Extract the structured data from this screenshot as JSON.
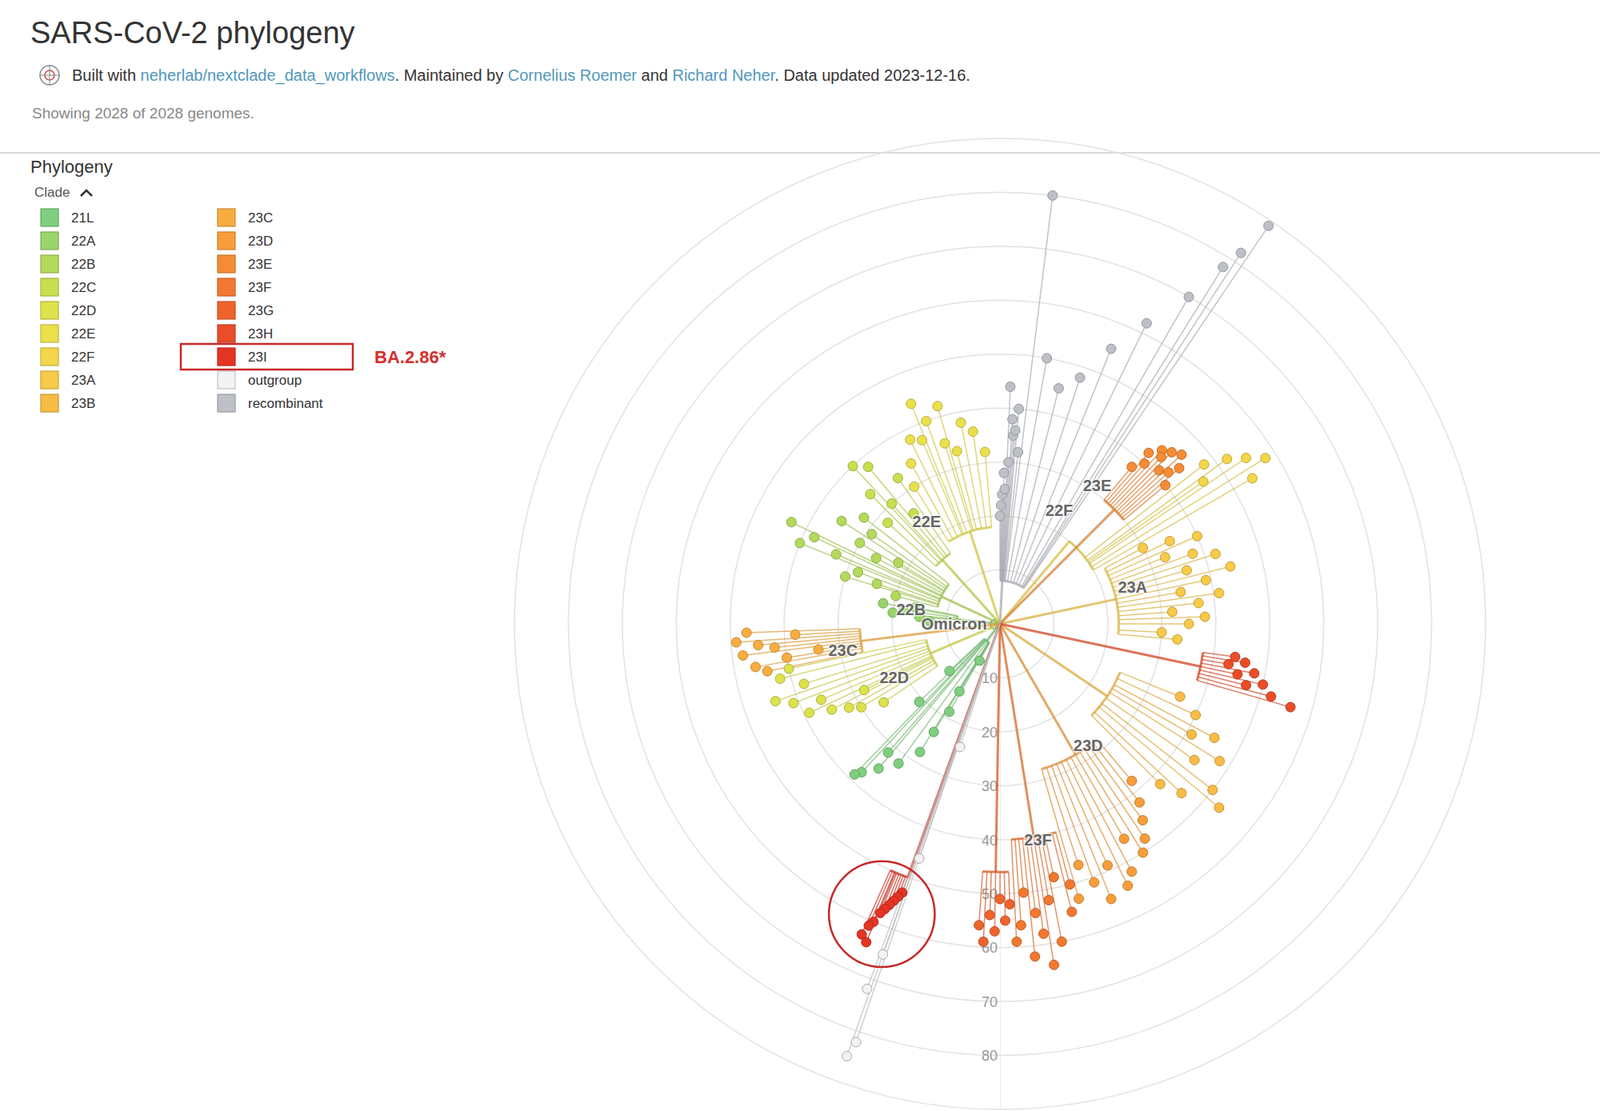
{
  "chart_data": {
    "type": "radial_tree",
    "title": "SARS-CoV-2 phylogeny",
    "byline": [
      {
        "text": "Built with "
      },
      {
        "link": "neherlab/nextclade_data_workflows"
      },
      {
        "text": ". Maintained by "
      },
      {
        "link": "Cornelius Roemer"
      },
      {
        "text": " and "
      },
      {
        "link": "Richard Neher"
      },
      {
        "text": ". Data updated 2023-12-16."
      }
    ],
    "subtitle": "Showing 2028 of 2028 genomes.",
    "section": "Phylogeny",
    "legend_title": "Clade",
    "legend": "top-left",
    "grid": true,
    "xlim": [
      0,
      360
    ],
    "ylim": [
      0,
      90
    ],
    "yticks": [
      0,
      10,
      20,
      30,
      40,
      50,
      60,
      70,
      80
    ],
    "series": [
      {
        "name": "21L",
        "color": "#7fcf7f",
        "node_x": 218,
        "node_value": 4,
        "x": [
          209,
          211,
          210,
          211.5,
          212,
          216,
          220,
          223,
          224,
          221,
          227,
          226
        ],
        "values": [
          7.8,
          14.6,
          18.8,
          23.5,
          28,
          32,
          35,
          37.6,
          38.8,
          31.6,
          12.8,
          20.8
        ]
      },
      {
        "name": "22A",
        "color": "#99d56a",
        "node_x": 276,
        "node_value": 8,
        "x": [
          272,
          275,
          278,
          281,
          276,
          280
        ],
        "values": [
          13,
          15,
          18,
          16,
          20,
          22
        ]
      },
      {
        "name": "22B",
        "color": "#b3da5a",
        "node_x": 295,
        "node_value": 12,
        "x": [
          285,
          288,
          290,
          293,
          295,
          298,
          300,
          303,
          305,
          308,
          296,
          292,
          301,
          287
        ],
        "values": [
          20,
          24,
          28,
          33,
          38,
          26,
          30,
          35,
          29,
          32,
          43,
          40,
          22,
          30
        ]
      },
      {
        "name": "22C",
        "color": "#cadf4e",
        "node_x": 318,
        "node_value": 16,
        "x": [
          312,
          315,
          318,
          320,
          322,
          325,
          317
        ],
        "values": [
          28,
          34,
          30,
          38,
          26,
          33,
          40
        ]
      },
      {
        "name": "22D",
        "color": "#dce24a",
        "node_x": 247,
        "node_value": 14,
        "x": [
          236,
          239,
          241,
          243,
          245,
          247,
          249,
          251,
          253,
          256,
          258,
          244
        ],
        "values": [
          26,
          30,
          32,
          35,
          39,
          36,
          41,
          44,
          38,
          42,
          40,
          28
        ]
      },
      {
        "name": "22E",
        "color": "#ebe04a",
        "node_x": 342,
        "node_value": 18,
        "x": [
          328,
          331,
          334,
          337,
          340,
          343,
          346,
          349,
          352,
          355,
          338,
          344
        ],
        "values": [
          30,
          34,
          38,
          37,
          40,
          35,
          33,
          38,
          36,
          32,
          44,
          42
        ]
      },
      {
        "name": "22F",
        "color": "#f3d64a",
        "node_x": 40,
        "node_value": 20,
        "x": [
          52,
          54,
          56,
          58,
          60,
          55
        ],
        "values": [
          48,
          52,
          55,
          58,
          54,
          46
        ]
      },
      {
        "name": "23A",
        "color": "#f7ca48",
        "node_x": 78,
        "node_value": 22,
        "x": [
          62,
          64,
          66,
          68,
          70,
          72,
          74,
          76,
          78,
          80,
          82,
          84,
          86,
          88,
          90,
          93,
          95
        ],
        "values": [
          30,
          35,
          40,
          33,
          38,
          42,
          36,
          44,
          39,
          34,
          41,
          37,
          32,
          38,
          35,
          30,
          33
        ]
      },
      {
        "name": "23B",
        "color": "#f8bc44",
        "node_x": 124,
        "node_value": 24,
        "x": [
          112,
          115,
          118,
          120,
          122,
          125,
          128,
          130,
          133,
          135
        ],
        "values": [
          36,
          40,
          45,
          41,
          48,
          44,
          50,
          53,
          46,
          42
        ]
      },
      {
        "name": "23C",
        "color": "#f8ad3f",
        "node_x": 263,
        "node_value": 26,
        "x": [
          258.5,
          260,
          261,
          262,
          263,
          264,
          265,
          266,
          267,
          268
        ],
        "values": [
          44,
          46,
          40,
          34,
          48,
          42,
          45,
          49,
          38,
          47
        ]
      },
      {
        "name": "23D",
        "color": "#f79e3a",
        "node_x": 150,
        "node_value": 28,
        "x": [
          140,
          142,
          144,
          146,
          148,
          150,
          152,
          154,
          156,
          158,
          160,
          162,
          164
        ],
        "values": [
          38,
          42,
          45,
          48,
          50,
          46,
          52,
          54,
          49,
          55,
          51,
          47,
          53
        ]
      },
      {
        "name": "23E",
        "color": "#f58c35",
        "node_x": 45,
        "node_value": 30,
        "x": [
          40,
          41,
          42,
          43,
          44,
          45,
          46,
          47,
          48,
          49,
          50
        ],
        "values": [
          38,
          42,
          40,
          44,
          43,
          45,
          41,
          46,
          42,
          44,
          40
        ]
      },
      {
        "name": "23F",
        "color": "#f27830",
        "node_x": 171,
        "node_value": 40,
        "x": [
          165,
          166,
          168,
          169,
          170,
          171,
          172,
          173,
          174,
          175,
          176,
          177
        ],
        "values": [
          50,
          55,
          48,
          60,
          52,
          64,
          58,
          54,
          62,
          50,
          56,
          59
        ]
      },
      {
        "name": "23G",
        "color": "#ef632b",
        "node_x": 181,
        "node_value": 46,
        "x": [
          178,
          179,
          180,
          181,
          182,
          183,
          184
        ],
        "values": [
          52,
          55,
          51,
          57,
          54,
          59,
          56
        ]
      },
      {
        "name": "23H",
        "color": "#ea4d28",
        "node_x": 102,
        "node_value": 38,
        "x": [
          98,
          99,
          100,
          101,
          102,
          103,
          104,
          105,
          106
        ],
        "values": [
          44,
          46,
          43,
          48,
          45,
          50,
          47,
          52,
          56
        ]
      },
      {
        "name": "23I",
        "color": "#e43423",
        "node_x": 200,
        "node_value": 50,
        "x": [
          200,
          200.5,
          201,
          201.5,
          202,
          202.5,
          203,
          203.5,
          204,
          202.8
        ],
        "values": [
          53,
          54,
          55,
          56,
          57,
          58,
          60,
          61,
          63,
          64
        ]
      },
      {
        "name": "outgroup",
        "color": "#f2f2f2",
        "node_x": 199,
        "node_value": 0,
        "x": [
          198,
          199,
          199.5,
          200,
          199,
          199.5
        ],
        "values": [
          24,
          46,
          65,
          72,
          82,
          85
        ]
      },
      {
        "name": "recombinant",
        "color": "#bdc1c7",
        "node_x": 3,
        "node_value": 8,
        "x": [
          0,
          1,
          1.5,
          2,
          3,
          4,
          5,
          6,
          7,
          2.5,
          3.5,
          10,
          14,
          18,
          22,
          26,
          30,
          32,
          33,
          34,
          0.5,
          4.5
        ],
        "values": [
          20,
          24,
          28,
          25,
          30,
          35,
          40,
          32,
          80,
          44,
          38,
          50,
          45,
          48,
          55,
          62,
          70,
          78,
          82,
          89,
          22,
          36
        ]
      }
    ],
    "branch_labels": [
      {
        "text": "Omicron",
        "x": 270,
        "value": 8.5
      },
      {
        "text": "22E",
        "x": 324.5,
        "value": 23.4
      },
      {
        "text": "22B",
        "x": 279,
        "value": 16.7
      },
      {
        "text": "23C",
        "x": 260.4,
        "value": 29.5
      },
      {
        "text": "22D",
        "x": 243,
        "value": 22
      },
      {
        "text": "22F",
        "x": 27.6,
        "value": 23.7
      },
      {
        "text": "23E",
        "x": 35,
        "value": 31.4
      },
      {
        "text": "23A",
        "x": 74.5,
        "value": 25.5
      },
      {
        "text": "23D",
        "x": 144,
        "value": 27.8
      },
      {
        "text": "23F",
        "x": 170,
        "value": 40.6
      }
    ],
    "annotations": [
      {
        "text": "BA.2.86*",
        "clade": "23I"
      }
    ]
  }
}
